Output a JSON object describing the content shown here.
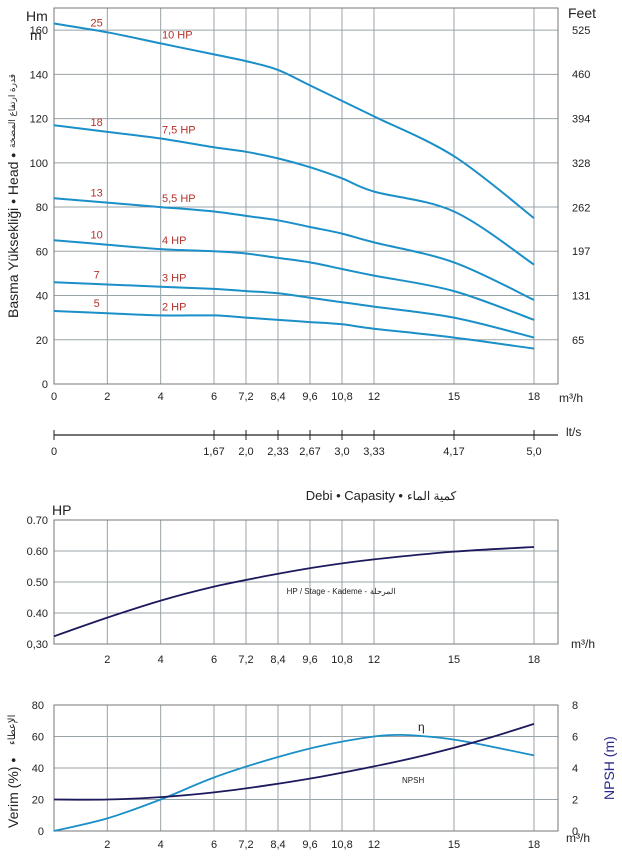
{
  "chart_data": [
    {
      "type": "line",
      "left_axis_title": "Hm",
      "left_axis_title2": "m",
      "right_axis_title": "Feet",
      "ylabel": "Basma Yüksekliği • Head •",
      "ylabel_arabic": "قدرة ارتفاع المضخة",
      "x_unit": "m³/h",
      "x_ticks": [
        "0",
        "2",
        "4",
        "6",
        "7,2",
        "8,4",
        "9,6",
        "10,8",
        "12",
        "15",
        "18"
      ],
      "y_ticks": [
        "0",
        "20",
        "40",
        "60",
        "80",
        "100",
        "120",
        "140",
        "160"
      ],
      "feet_ticks": [
        "65",
        "131",
        "197",
        "262",
        "328",
        "394",
        "460",
        "525"
      ],
      "ylim": [
        0,
        170
      ],
      "series": [
        {
          "stages": "25",
          "name": "10 HP",
          "x": [
            0,
            2,
            4,
            6,
            7.2,
            8.4,
            9.6,
            10.8,
            12,
            15,
            18
          ],
          "y": [
            163,
            159,
            154,
            149,
            146,
            142,
            135,
            128,
            121,
            103,
            75
          ]
        },
        {
          "stages": "18",
          "name": "7,5 HP",
          "x": [
            0,
            2,
            4,
            6,
            7.2,
            8.4,
            9.6,
            10.8,
            12,
            15,
            18
          ],
          "y": [
            117,
            114,
            111,
            107,
            105,
            102,
            98,
            93,
            87,
            78,
            54
          ]
        },
        {
          "stages": "13",
          "name": "5,5 HP",
          "x": [
            0,
            2,
            4,
            6,
            7.2,
            8.4,
            9.6,
            10.8,
            12,
            15,
            18
          ],
          "y": [
            84,
            82,
            80,
            78,
            76,
            74,
            71,
            68,
            64,
            55,
            38
          ]
        },
        {
          "stages": "10",
          "name": "4 HP",
          "x": [
            0,
            2,
            4,
            6,
            7.2,
            8.4,
            9.6,
            10.8,
            12,
            15,
            18
          ],
          "y": [
            65,
            63,
            61,
            60,
            59,
            57,
            55,
            52,
            49,
            42,
            29
          ]
        },
        {
          "stages": "7",
          "name": "3 HP",
          "x": [
            0,
            2,
            4,
            6,
            7.2,
            8.4,
            9.6,
            10.8,
            12,
            15,
            18
          ],
          "y": [
            46,
            45,
            44,
            43,
            42,
            41,
            39,
            37,
            35,
            30,
            21
          ]
        },
        {
          "stages": "5",
          "name": "2 HP",
          "x": [
            0,
            2,
            4,
            6,
            7.2,
            8.4,
            9.6,
            10.8,
            12,
            15,
            18
          ],
          "y": [
            33,
            32,
            31,
            31,
            30,
            29,
            28,
            27,
            25,
            21,
            16
          ]
        }
      ]
    },
    {
      "type": "axis",
      "unit": "lt/s",
      "ticks": [
        "0",
        "1,67",
        "2,0",
        "2,33",
        "2,67",
        "3,0",
        "3,33",
        "4,17",
        "5,0"
      ],
      "m3h_positions": [
        0,
        6,
        7.2,
        8.4,
        9.6,
        10.8,
        12,
        15,
        18
      ]
    },
    {
      "type": "line",
      "title": "Debi • Capasity •",
      "title_arabic": "كمية الماء",
      "left_axis_title": "HP",
      "x_unit": "m³/h",
      "x_ticks": [
        "2",
        "4",
        "6",
        "7,2",
        "8,4",
        "9,6",
        "10,8",
        "12",
        "15",
        "18"
      ],
      "y_ticks": [
        "0,30",
        "0.40",
        "0.50",
        "0.60",
        "0.70"
      ],
      "ylim": [
        0.3,
        0.7
      ],
      "annotation": "HP / Stage - Kademe -",
      "annotation_arabic": "المرحلة",
      "series": [
        {
          "x": [
            0,
            2,
            4,
            6,
            8,
            10,
            12,
            15,
            18
          ],
          "y": [
            0.325,
            0.385,
            0.44,
            0.485,
            0.52,
            0.55,
            0.573,
            0.598,
            0.613
          ]
        }
      ]
    },
    {
      "type": "line",
      "ylabel": "Verim (%) •",
      "ylabel_arabic": "الإعطاء",
      "right_label": "NPSH (m)",
      "x_unit": "m³/h",
      "x_ticks": [
        "2",
        "4",
        "6",
        "7,2",
        "8,4",
        "9,6",
        "10,8",
        "12",
        "15",
        "18"
      ],
      "y_ticks": [
        "0",
        "20",
        "40",
        "60",
        "80"
      ],
      "npsh_ticks": [
        "0",
        "2",
        "4",
        "6",
        "8"
      ],
      "ylim": [
        0,
        80
      ],
      "npsh_lim": [
        0,
        8
      ],
      "series": [
        {
          "name": "η",
          "x": [
            0,
            2,
            4,
            6,
            8,
            10,
            12,
            13,
            14,
            15,
            16,
            18
          ],
          "y": [
            0,
            8,
            20,
            34,
            45,
            54,
            60,
            61,
            60,
            58,
            55,
            48
          ]
        },
        {
          "name": "NPSH",
          "x": [
            0,
            2,
            4,
            6,
            8,
            10,
            12,
            14,
            16,
            18
          ],
          "y": [
            2.0,
            2.0,
            2.15,
            2.45,
            2.9,
            3.45,
            4.1,
            4.85,
            5.75,
            6.8
          ]
        }
      ]
    }
  ],
  "colors": {
    "curve": "#1a8fc8",
    "dark_curve": "#1c1a5c",
    "grid": "#9aa3a8",
    "hp_label": "#b5312b"
  }
}
